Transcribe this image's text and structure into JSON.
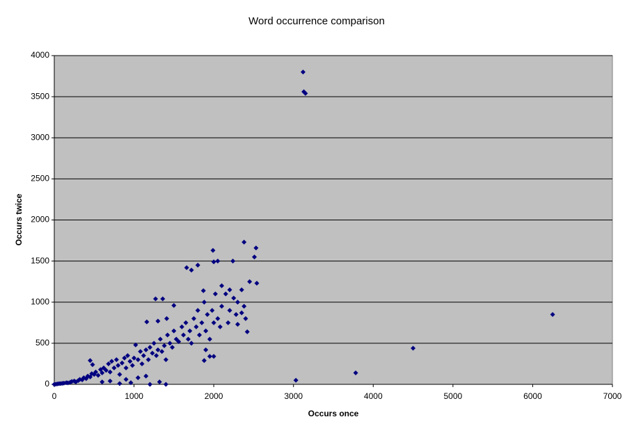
{
  "chart_data": {
    "type": "scatter",
    "title": "Word occurrence comparison",
    "x_label": "Occurs once",
    "y_label": "Occurs twice",
    "color": "#000080",
    "background": "#c0c0c0",
    "grid": true,
    "xlim": [
      0,
      7000
    ],
    "xticks": [
      0,
      1000,
      2000,
      3000,
      4000,
      5000,
      6000,
      7000
    ],
    "ylim": [
      0,
      4000
    ],
    "yticks": [
      0,
      500,
      1000,
      1500,
      2000,
      2500,
      3000,
      3500,
      4000
    ],
    "x": [
      0,
      20,
      40,
      60,
      80,
      100,
      120,
      150,
      170,
      200,
      220,
      250,
      270,
      300,
      320,
      350,
      370,
      400,
      420,
      450,
      470,
      450,
      480,
      500,
      520,
      550,
      580,
      600,
      620,
      650,
      680,
      700,
      720,
      750,
      780,
      800,
      820,
      850,
      880,
      900,
      920,
      950,
      980,
      1000,
      1020,
      1050,
      1080,
      1100,
      1120,
      1150,
      1180,
      1200,
      1230,
      1250,
      1280,
      1300,
      1330,
      1350,
      1380,
      1400,
      1420,
      1450,
      1480,
      1500,
      1530,
      1560,
      1600,
      1620,
      1650,
      1680,
      1700,
      1720,
      1750,
      1780,
      1800,
      1820,
      1850,
      1880,
      1900,
      1920,
      1950,
      1980,
      2000,
      2020,
      2050,
      2080,
      2100,
      2150,
      2180,
      2200,
      2250,
      2280,
      2300,
      2350,
      2380,
      2400,
      900,
      700,
      600,
      1050,
      820,
      960,
      3120,
      3130,
      3150,
      6250,
      4500,
      3780,
      3030,
      1990,
      2380,
      2530,
      1660,
      1720,
      1800,
      2050,
      2240,
      2510,
      2000,
      2540,
      2100,
      1870,
      2450,
      2200,
      1270,
      1360,
      1500,
      1410,
      1160,
      1300,
      1900,
      1950,
      1880,
      2000,
      1400,
      1320,
      1200,
      1150,
      2420,
      2300,
      2350
    ],
    "y": [
      0,
      2,
      5,
      8,
      10,
      12,
      15,
      20,
      18,
      25,
      35,
      40,
      30,
      45,
      60,
      55,
      80,
      70,
      100,
      90,
      130,
      290,
      240,
      120,
      150,
      110,
      180,
      140,
      200,
      170,
      250,
      150,
      280,
      200,
      300,
      230,
      120,
      260,
      320,
      200,
      350,
      280,
      230,
      320,
      480,
      300,
      400,
      250,
      350,
      420,
      300,
      450,
      380,
      500,
      350,
      420,
      550,
      400,
      470,
      300,
      600,
      500,
      450,
      650,
      550,
      520,
      700,
      600,
      750,
      550,
      650,
      500,
      800,
      700,
      900,
      600,
      750,
      1000,
      650,
      850,
      550,
      900,
      750,
      1100,
      800,
      700,
      950,
      1100,
      750,
      900,
      1050,
      850,
      1000,
      1150,
      950,
      800,
      60,
      40,
      30,
      80,
      10,
      20,
      3800,
      3560,
      3540,
      850,
      440,
      140,
      50,
      1630,
      1730,
      1660,
      1420,
      1390,
      1450,
      1500,
      1500,
      1550,
      1490,
      1230,
      1200,
      1140,
      1250,
      1150,
      1040,
      1040,
      960,
      800,
      760,
      770,
      420,
      340,
      290,
      340,
      0,
      30,
      0,
      100,
      640,
      730,
      870
    ]
  }
}
